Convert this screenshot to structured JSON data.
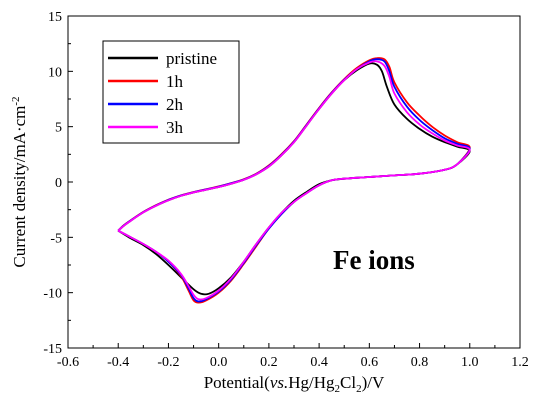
{
  "chart_data": {
    "type": "line",
    "title": "",
    "xlabel_parts": [
      "Potential(",
      "vs.",
      "Hg/Hg",
      "2",
      "Cl",
      "2",
      ")/V"
    ],
    "ylabel_parts": [
      "Current density/mA·cm",
      "-2"
    ],
    "xlim": [
      -0.6,
      1.2
    ],
    "ylim": [
      -15,
      15
    ],
    "xticks": [
      -0.6,
      -0.4,
      -0.2,
      0.0,
      0.2,
      0.4,
      0.6,
      0.8,
      1.0,
      1.2
    ],
    "xtick_labels": [
      "-0.6",
      "-0.4",
      "-0.2",
      "0.0",
      "0.2",
      "0.4",
      "0.6",
      "0.8",
      "1.0",
      "1.2"
    ],
    "yticks": [
      -15,
      -10,
      -5,
      0,
      5,
      10,
      15
    ],
    "ytick_labels": [
      "-15",
      "-10",
      "-5",
      "0",
      "5",
      "10",
      "15"
    ],
    "legend_position": "top-left",
    "annotation": "Fe ions",
    "series": [
      {
        "name": "pristine",
        "color": "#000000",
        "points": [
          [
            -0.4,
            -4.4
          ],
          [
            -0.35,
            -5.1
          ],
          [
            -0.3,
            -5.7
          ],
          [
            -0.25,
            -6.5
          ],
          [
            -0.2,
            -7.5
          ],
          [
            -0.15,
            -8.6
          ],
          [
            -0.1,
            -9.7
          ],
          [
            -0.07,
            -10.1
          ],
          [
            -0.04,
            -10.1
          ],
          [
            0.0,
            -9.6
          ],
          [
            0.05,
            -8.6
          ],
          [
            0.1,
            -7.2
          ],
          [
            0.15,
            -5.6
          ],
          [
            0.2,
            -4.1
          ],
          [
            0.25,
            -2.8
          ],
          [
            0.3,
            -1.7
          ],
          [
            0.35,
            -0.9
          ],
          [
            0.4,
            -0.2
          ],
          [
            0.45,
            0.15
          ],
          [
            0.5,
            0.3
          ],
          [
            0.6,
            0.45
          ],
          [
            0.7,
            0.6
          ],
          [
            0.8,
            0.75
          ],
          [
            0.9,
            1.1
          ],
          [
            0.95,
            1.6
          ],
          [
            1.0,
            2.8
          ],
          [
            0.95,
            3.2
          ],
          [
            0.9,
            3.6
          ],
          [
            0.85,
            4.1
          ],
          [
            0.8,
            4.8
          ],
          [
            0.75,
            5.7
          ],
          [
            0.7,
            7.0
          ],
          [
            0.67,
            8.6
          ],
          [
            0.65,
            10.0
          ],
          [
            0.63,
            10.6
          ],
          [
            0.6,
            10.7
          ],
          [
            0.55,
            10.1
          ],
          [
            0.5,
            9.2
          ],
          [
            0.45,
            8.0
          ],
          [
            0.4,
            6.6
          ],
          [
            0.35,
            5.1
          ],
          [
            0.3,
            3.6
          ],
          [
            0.25,
            2.4
          ],
          [
            0.2,
            1.4
          ],
          [
            0.15,
            0.7
          ],
          [
            0.1,
            0.2
          ],
          [
            0.05,
            -0.15
          ],
          [
            0.0,
            -0.45
          ],
          [
            -0.05,
            -0.7
          ],
          [
            -0.1,
            -0.95
          ],
          [
            -0.15,
            -1.25
          ],
          [
            -0.2,
            -1.65
          ],
          [
            -0.25,
            -2.15
          ],
          [
            -0.3,
            -2.75
          ],
          [
            -0.35,
            -3.5
          ],
          [
            -0.38,
            -4.0
          ],
          [
            -0.4,
            -4.4
          ]
        ]
      },
      {
        "name": "1h",
        "color": "#ff0000",
        "points": [
          [
            -0.4,
            -4.4
          ],
          [
            -0.35,
            -5.0
          ],
          [
            -0.3,
            -5.6
          ],
          [
            -0.25,
            -6.3
          ],
          [
            -0.2,
            -7.2
          ],
          [
            -0.15,
            -8.5
          ],
          [
            -0.12,
            -9.8
          ],
          [
            -0.1,
            -10.7
          ],
          [
            -0.08,
            -10.9
          ],
          [
            -0.05,
            -10.7
          ],
          [
            0.0,
            -10.0
          ],
          [
            0.05,
            -8.9
          ],
          [
            0.1,
            -7.4
          ],
          [
            0.15,
            -5.8
          ],
          [
            0.2,
            -4.2
          ],
          [
            0.25,
            -2.9
          ],
          [
            0.3,
            -1.8
          ],
          [
            0.35,
            -1.0
          ],
          [
            0.4,
            -0.3
          ],
          [
            0.45,
            0.15
          ],
          [
            0.5,
            0.3
          ],
          [
            0.6,
            0.45
          ],
          [
            0.7,
            0.6
          ],
          [
            0.8,
            0.75
          ],
          [
            0.9,
            1.1
          ],
          [
            0.95,
            1.6
          ],
          [
            1.0,
            3.1
          ],
          [
            0.95,
            3.6
          ],
          [
            0.9,
            4.2
          ],
          [
            0.85,
            5.0
          ],
          [
            0.8,
            6.0
          ],
          [
            0.75,
            7.2
          ],
          [
            0.7,
            9.0
          ],
          [
            0.68,
            10.4
          ],
          [
            0.66,
            11.1
          ],
          [
            0.63,
            11.2
          ],
          [
            0.6,
            11.0
          ],
          [
            0.55,
            10.3
          ],
          [
            0.5,
            9.3
          ],
          [
            0.45,
            8.1
          ],
          [
            0.4,
            6.7
          ],
          [
            0.35,
            5.2
          ],
          [
            0.3,
            3.7
          ],
          [
            0.25,
            2.5
          ],
          [
            0.2,
            1.5
          ],
          [
            0.15,
            0.75
          ],
          [
            0.1,
            0.25
          ],
          [
            0.05,
            -0.1
          ],
          [
            0.0,
            -0.4
          ],
          [
            -0.05,
            -0.65
          ],
          [
            -0.1,
            -0.9
          ],
          [
            -0.15,
            -1.2
          ],
          [
            -0.2,
            -1.6
          ],
          [
            -0.25,
            -2.1
          ],
          [
            -0.3,
            -2.7
          ],
          [
            -0.35,
            -3.45
          ],
          [
            -0.38,
            -3.95
          ],
          [
            -0.4,
            -4.4
          ]
        ]
      },
      {
        "name": "2h",
        "color": "#0000ff",
        "points": [
          [
            -0.4,
            -4.4
          ],
          [
            -0.35,
            -5.0
          ],
          [
            -0.3,
            -5.6
          ],
          [
            -0.25,
            -6.3
          ],
          [
            -0.2,
            -7.2
          ],
          [
            -0.15,
            -8.4
          ],
          [
            -0.12,
            -9.6
          ],
          [
            -0.1,
            -10.5
          ],
          [
            -0.08,
            -10.8
          ],
          [
            -0.05,
            -10.6
          ],
          [
            0.0,
            -9.9
          ],
          [
            0.05,
            -8.8
          ],
          [
            0.1,
            -7.3
          ],
          [
            0.15,
            -5.7
          ],
          [
            0.2,
            -4.2
          ],
          [
            0.25,
            -2.9
          ],
          [
            0.3,
            -1.8
          ],
          [
            0.35,
            -1.0
          ],
          [
            0.4,
            -0.3
          ],
          [
            0.45,
            0.15
          ],
          [
            0.5,
            0.3
          ],
          [
            0.6,
            0.45
          ],
          [
            0.7,
            0.6
          ],
          [
            0.8,
            0.75
          ],
          [
            0.9,
            1.1
          ],
          [
            0.95,
            1.6
          ],
          [
            1.0,
            3.0
          ],
          [
            0.95,
            3.45
          ],
          [
            0.9,
            3.95
          ],
          [
            0.85,
            4.7
          ],
          [
            0.8,
            5.6
          ],
          [
            0.75,
            6.8
          ],
          [
            0.7,
            8.6
          ],
          [
            0.68,
            10.0
          ],
          [
            0.66,
            10.9
          ],
          [
            0.63,
            11.1
          ],
          [
            0.6,
            10.9
          ],
          [
            0.55,
            10.2
          ],
          [
            0.5,
            9.25
          ],
          [
            0.45,
            8.05
          ],
          [
            0.4,
            6.65
          ],
          [
            0.35,
            5.15
          ],
          [
            0.3,
            3.65
          ],
          [
            0.25,
            2.45
          ],
          [
            0.2,
            1.45
          ],
          [
            0.15,
            0.72
          ],
          [
            0.1,
            0.22
          ],
          [
            0.05,
            -0.12
          ],
          [
            0.0,
            -0.42
          ],
          [
            -0.05,
            -0.67
          ],
          [
            -0.1,
            -0.92
          ],
          [
            -0.15,
            -1.22
          ],
          [
            -0.2,
            -1.62
          ],
          [
            -0.25,
            -2.12
          ],
          [
            -0.3,
            -2.72
          ],
          [
            -0.35,
            -3.47
          ],
          [
            -0.38,
            -3.97
          ],
          [
            -0.4,
            -4.4
          ]
        ]
      },
      {
        "name": "3h",
        "color": "#ff00ff",
        "points": [
          [
            -0.4,
            -4.4
          ],
          [
            -0.35,
            -5.0
          ],
          [
            -0.3,
            -5.6
          ],
          [
            -0.25,
            -6.3
          ],
          [
            -0.2,
            -7.1
          ],
          [
            -0.15,
            -8.3
          ],
          [
            -0.12,
            -9.4
          ],
          [
            -0.1,
            -10.2
          ],
          [
            -0.08,
            -10.6
          ],
          [
            -0.05,
            -10.5
          ],
          [
            0.0,
            -9.8
          ],
          [
            0.05,
            -8.7
          ],
          [
            0.1,
            -7.2
          ],
          [
            0.15,
            -5.6
          ],
          [
            0.2,
            -4.1
          ],
          [
            0.25,
            -2.8
          ],
          [
            0.3,
            -1.8
          ],
          [
            0.35,
            -1.0
          ],
          [
            0.4,
            -0.3
          ],
          [
            0.45,
            0.15
          ],
          [
            0.5,
            0.3
          ],
          [
            0.6,
            0.45
          ],
          [
            0.7,
            0.6
          ],
          [
            0.8,
            0.75
          ],
          [
            0.9,
            1.1
          ],
          [
            0.95,
            1.6
          ],
          [
            1.0,
            2.9
          ],
          [
            0.95,
            3.3
          ],
          [
            0.9,
            3.75
          ],
          [
            0.85,
            4.4
          ],
          [
            0.8,
            5.2
          ],
          [
            0.75,
            6.3
          ],
          [
            0.7,
            8.0
          ],
          [
            0.68,
            9.5
          ],
          [
            0.66,
            10.5
          ],
          [
            0.63,
            10.9
          ],
          [
            0.6,
            10.8
          ],
          [
            0.55,
            10.2
          ],
          [
            0.5,
            9.2
          ],
          [
            0.45,
            8.0
          ],
          [
            0.4,
            6.6
          ],
          [
            0.35,
            5.1
          ],
          [
            0.3,
            3.6
          ],
          [
            0.25,
            2.4
          ],
          [
            0.2,
            1.4
          ],
          [
            0.15,
            0.7
          ],
          [
            0.1,
            0.2
          ],
          [
            0.05,
            -0.15
          ],
          [
            0.0,
            -0.45
          ],
          [
            -0.05,
            -0.7
          ],
          [
            -0.1,
            -0.95
          ],
          [
            -0.15,
            -1.25
          ],
          [
            -0.2,
            -1.65
          ],
          [
            -0.25,
            -2.15
          ],
          [
            -0.3,
            -2.75
          ],
          [
            -0.35,
            -3.5
          ],
          [
            -0.38,
            -4.0
          ],
          [
            -0.4,
            -4.4
          ]
        ]
      }
    ]
  }
}
